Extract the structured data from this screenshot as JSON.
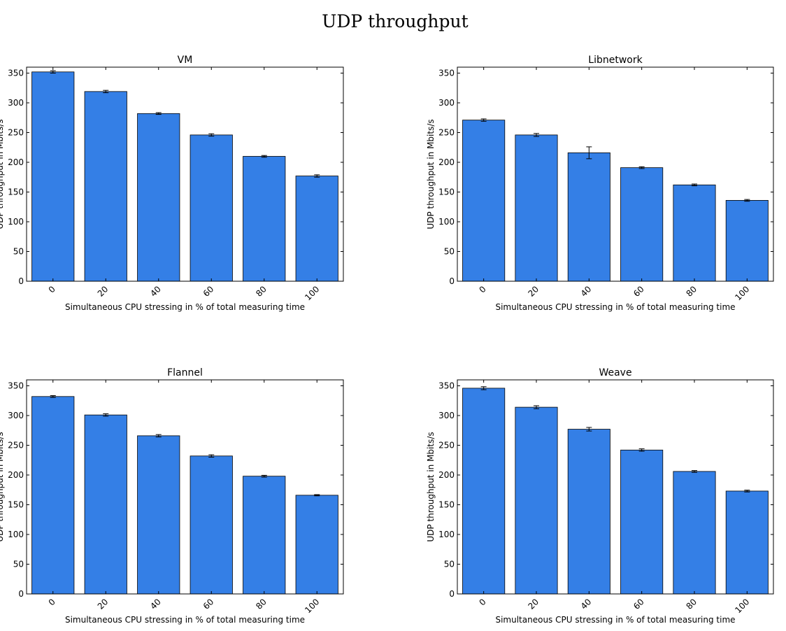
{
  "title": "UDP throughput",
  "style": {
    "bar_color": "#347fe6",
    "edge_color": "#000000",
    "background": "#ffffff"
  },
  "chart_data": [
    {
      "type": "bar",
      "title": "VM",
      "xlabel": "Simultaneous CPU stressing in % of total measuring time",
      "ylabel": "UDP throughput in Mbits/s",
      "categories": [
        "0",
        "20",
        "40",
        "60",
        "80",
        "100"
      ],
      "values": [
        352,
        319,
        282,
        246,
        210,
        177
      ],
      "errors": [
        2,
        2,
        1.5,
        2,
        1.5,
        2
      ],
      "ylim": [
        0,
        360
      ],
      "yticks": [
        "0",
        "50",
        "100",
        "150",
        "200",
        "250",
        "300",
        "350"
      ],
      "grid": false
    },
    {
      "type": "bar",
      "title": "Libnetwork",
      "xlabel": "Simultaneous CPU stressing in % of total measuring time",
      "ylabel": "UDP throughput in Mbits/s",
      "categories": [
        "0",
        "20",
        "40",
        "60",
        "80",
        "100"
      ],
      "values": [
        271,
        246,
        216,
        191,
        162,
        136
      ],
      "errors": [
        2,
        2.5,
        10,
        1.5,
        1.5,
        1.5
      ],
      "ylim": [
        0,
        360
      ],
      "yticks": [
        "0",
        "50",
        "100",
        "150",
        "200",
        "250",
        "300",
        "350"
      ],
      "grid": false
    },
    {
      "type": "bar",
      "title": "Flannel",
      "xlabel": "Simultaneous CPU stressing in % of total measuring time",
      "ylabel": "UDP throughput in Mbits/s",
      "categories": [
        "0",
        "20",
        "40",
        "60",
        "80",
        "100"
      ],
      "values": [
        332,
        301,
        266,
        232,
        198,
        166
      ],
      "errors": [
        1.5,
        2,
        2,
        2,
        1.5,
        1
      ],
      "ylim": [
        0,
        360
      ],
      "yticks": [
        "0",
        "50",
        "100",
        "150",
        "200",
        "250",
        "300",
        "350"
      ],
      "grid": false
    },
    {
      "type": "bar",
      "title": "Weave",
      "xlabel": "Simultaneous CPU stressing in % of total measuring time",
      "ylabel": "UDP throughput in Mbits/s",
      "categories": [
        "0",
        "20",
        "40",
        "60",
        "80",
        "100"
      ],
      "values": [
        346,
        314,
        277,
        242,
        206,
        173
      ],
      "errors": [
        2.5,
        2.5,
        3,
        2,
        1.5,
        1.5
      ],
      "ylim": [
        0,
        360
      ],
      "yticks": [
        "0",
        "50",
        "100",
        "150",
        "200",
        "250",
        "300",
        "350"
      ],
      "grid": false
    }
  ]
}
